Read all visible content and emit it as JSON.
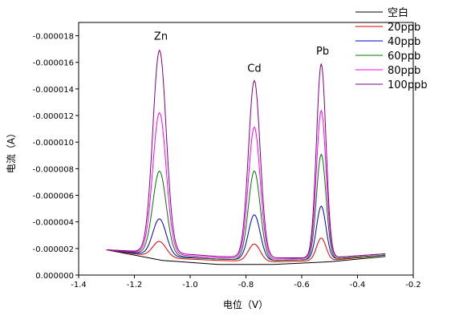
{
  "chart_data": {
    "type": "line",
    "xlabel": "电位（V）",
    "ylabel": "电流（A）",
    "xlim": [
      -1.4,
      -0.2
    ],
    "ylim": [
      0,
      -1.9e-05
    ],
    "y_axis_inverted_sign": true,
    "x_ticks": [
      -1.4,
      -1.2,
      -1.0,
      -0.8,
      -0.6,
      -0.4,
      -0.2
    ],
    "x_tick_labels": [
      "-1.4",
      "-1.2",
      "-1.0",
      "-0.8",
      "-0.6",
      "-0.4",
      "-0.2"
    ],
    "y_ticks": [
      0,
      -2e-06,
      -4e-06,
      -6e-06,
      -8e-06,
      -1e-05,
      -1.2e-05,
      -1.4e-05,
      -1.6e-05,
      -1.8e-05
    ],
    "y_tick_labels": [
      "0.000000",
      "-0.000002",
      "-0.000004",
      "-0.000006",
      "-0.000008",
      "-0.000010",
      "-0.000012",
      "-0.000014",
      "-0.000016",
      "-0.000018"
    ],
    "legend_position": "top-right",
    "peak_labels": [
      {
        "text": "Zn",
        "x": -1.105,
        "y": -1.77e-05
      },
      {
        "text": "Cd",
        "x": -0.77,
        "y": -1.53e-05
      },
      {
        "text": "Pb",
        "x": -0.525,
        "y": -1.66e-05
      }
    ],
    "peak_x": [
      -1.11,
      -0.77,
      -0.53
    ],
    "peak_width": [
      0.024,
      0.021,
      0.017
    ],
    "series": [
      {
        "name": "空白",
        "color": "#000000",
        "baseline": [
          [
            -1.3,
            -1.9e-06
          ],
          [
            -1.1,
            -1.1e-06
          ],
          [
            -0.9,
            -8e-07
          ],
          [
            -0.7,
            -8e-07
          ],
          [
            -0.5,
            -1e-06
          ],
          [
            -0.3,
            -1.4e-06
          ]
        ],
        "peaks": [
          0,
          0,
          0
        ]
      },
      {
        "name": "20ppb",
        "color": "#e00000",
        "baseline": [
          [
            -1.3,
            -1.9e-06
          ],
          [
            -1.1,
            -1.3e-06
          ],
          [
            -0.9,
            -1.1e-06
          ],
          [
            -0.7,
            -1e-06
          ],
          [
            -0.5,
            -1.1e-06
          ],
          [
            -0.3,
            -1.5e-06
          ]
        ],
        "peaks": [
          -1.2e-06,
          -1.3e-06,
          -1.7e-06
        ]
      },
      {
        "name": "40ppb",
        "color": "#0000cc",
        "baseline": [
          [
            -1.3,
            -1.9e-06
          ],
          [
            -1.1,
            -1.4e-06
          ],
          [
            -0.9,
            -1.2e-06
          ],
          [
            -0.7,
            -1.1e-06
          ],
          [
            -0.5,
            -1.2e-06
          ],
          [
            -0.3,
            -1.5e-06
          ]
        ],
        "peaks": [
          -2.8e-06,
          -3.4e-06,
          -4e-06
        ]
      },
      {
        "name": "60ppb",
        "color": "#007700",
        "baseline": [
          [
            -1.3,
            -1.9e-06
          ],
          [
            -1.1,
            -1.5e-06
          ],
          [
            -0.9,
            -1.2e-06
          ],
          [
            -0.7,
            -1.1e-06
          ],
          [
            -0.5,
            -1.2e-06
          ],
          [
            -0.3,
            -1.5e-06
          ]
        ],
        "peaks": [
          -6.3e-06,
          -6.7e-06,
          -7.9e-06
        ]
      },
      {
        "name": "80ppb",
        "color": "#ff00ff",
        "baseline": [
          [
            -1.3,
            -1.9e-06
          ],
          [
            -1.1,
            -1.6e-06
          ],
          [
            -0.9,
            -1.3e-06
          ],
          [
            -0.7,
            -1.2e-06
          ],
          [
            -0.5,
            -1.3e-06
          ],
          [
            -0.3,
            -1.6e-06
          ]
        ],
        "peaks": [
          -1.06e-05,
          -9.9e-06,
          -1.11e-05
        ]
      },
      {
        "name": "100ppb",
        "color": "#800080",
        "baseline": [
          [
            -1.3,
            -1.9e-06
          ],
          [
            -1.1,
            -1.7e-06
          ],
          [
            -0.9,
            -1.4e-06
          ],
          [
            -0.7,
            -1.3e-06
          ],
          [
            -0.5,
            -1.3e-06
          ],
          [
            -0.3,
            -1.6e-06
          ]
        ],
        "peaks": [
          -1.52e-05,
          -1.33e-05,
          -1.46e-05
        ]
      }
    ]
  }
}
